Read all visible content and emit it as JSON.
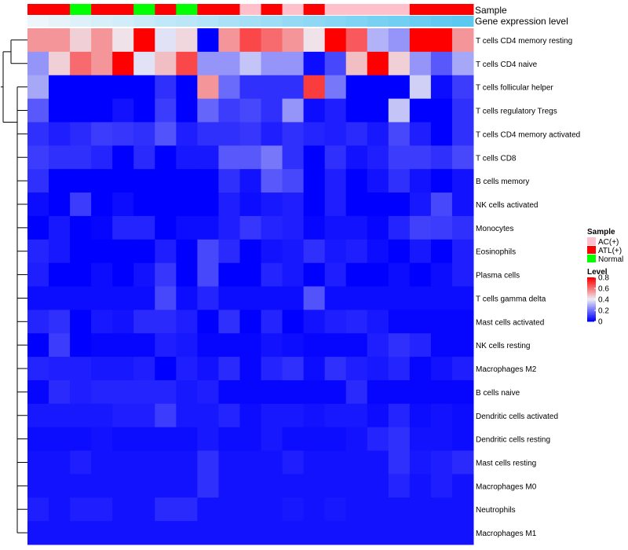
{
  "chart_data": {
    "type": "heatmap",
    "title": "",
    "annotation_titles": [
      "Sample",
      "Gene expression level"
    ],
    "sample_annotation": [
      "ATL(+)",
      "ATL(+)",
      "Normal",
      "ATL(+)",
      "ATL(+)",
      "Normal",
      "ATL(+)",
      "Normal",
      "ATL(+)",
      "ATL(+)",
      "AC(+)",
      "ATL(+)",
      "AC(+)",
      "ATL(+)",
      "AC(+)",
      "AC(+)",
      "AC(+)",
      "AC(+)",
      "ATL(+)",
      "ATL(+)",
      "ATL(+)"
    ],
    "gene_expression_level": [
      0.0,
      0.05,
      0.1,
      0.15,
      0.2,
      0.25,
      0.3,
      0.35,
      0.4,
      0.45,
      0.5,
      0.55,
      0.6,
      0.65,
      0.7,
      0.75,
      0.8,
      0.85,
      0.9,
      0.95,
      1.0
    ],
    "rows": [
      "T cells CD4 memory resting",
      "T cells CD4 naive",
      "T cells follicular helper",
      "T cells regulatory  Tregs",
      "T cells CD4 memory activated",
      "T cells CD8",
      "B cells memory",
      "NK cells activated",
      "Monocytes",
      "Eosinophils",
      "Plasma cells",
      "T cells gamma delta",
      "Mast cells activated",
      "NK cells resting",
      "Macrophages M2",
      "B cells naive",
      "Dendritic cells activated",
      "Dendritic cells resting",
      "Mast cells resting",
      "Macrophages M0",
      "Neutrophils",
      "Macrophages M1"
    ],
    "values": [
      [
        0.55,
        0.55,
        0.45,
        0.55,
        0.42,
        0.8,
        0.38,
        0.44,
        0.0,
        0.55,
        0.68,
        0.62,
        0.55,
        0.42,
        0.8,
        0.65,
        0.3,
        0.25,
        0.8,
        0.8,
        0.55
      ],
      [
        0.25,
        0.45,
        0.62,
        0.55,
        0.8,
        0.38,
        0.48,
        0.68,
        0.25,
        0.25,
        0.33,
        0.25,
        0.25,
        0.02,
        0.12,
        0.48,
        0.8,
        0.45,
        0.25,
        0.15,
        0.28
      ],
      [
        0.28,
        0.0,
        0.0,
        0.0,
        0.0,
        0.0,
        0.08,
        0.0,
        0.55,
        0.18,
        0.08,
        0.08,
        0.08,
        0.7,
        0.2,
        0.0,
        0.0,
        0.0,
        0.35,
        0.02,
        0.1
      ],
      [
        0.15,
        0.0,
        0.0,
        0.0,
        0.03,
        0.0,
        0.1,
        0.0,
        0.17,
        0.1,
        0.12,
        0.08,
        0.25,
        0.02,
        0.05,
        0.0,
        0.0,
        0.33,
        0.0,
        0.0,
        0.08
      ],
      [
        0.08,
        0.05,
        0.07,
        0.1,
        0.09,
        0.08,
        0.14,
        0.05,
        0.08,
        0.08,
        0.09,
        0.05,
        0.08,
        0.06,
        0.05,
        0.07,
        0.04,
        0.12,
        0.05,
        0.0,
        0.08
      ],
      [
        0.1,
        0.08,
        0.08,
        0.06,
        0.0,
        0.07,
        0.0,
        0.04,
        0.04,
        0.15,
        0.15,
        0.2,
        0.08,
        0.0,
        0.08,
        0.03,
        0.05,
        0.1,
        0.1,
        0.08,
        0.12
      ],
      [
        0.08,
        0.0,
        0.0,
        0.0,
        0.0,
        0.0,
        0.0,
        0.0,
        0.0,
        0.08,
        0.03,
        0.15,
        0.12,
        0.0,
        0.05,
        0.0,
        0.03,
        0.08,
        0.03,
        0.0,
        0.03
      ],
      [
        0.02,
        0.0,
        0.1,
        0.0,
        0.02,
        0.0,
        0.0,
        0.0,
        0.0,
        0.05,
        0.02,
        0.04,
        0.05,
        0.0,
        0.05,
        0.0,
        0.0,
        0.0,
        0.04,
        0.12,
        0.03
      ],
      [
        0.0,
        0.04,
        0.0,
        0.01,
        0.06,
        0.06,
        0.0,
        0.02,
        0.02,
        0.05,
        0.09,
        0.06,
        0.05,
        0.01,
        0.03,
        0.03,
        0.01,
        0.06,
        0.11,
        0.1,
        0.08
      ],
      [
        0.06,
        0.04,
        0.0,
        0.0,
        0.0,
        0.0,
        0.05,
        0.0,
        0.12,
        0.07,
        0.0,
        0.03,
        0.04,
        0.08,
        0.04,
        0.05,
        0.02,
        0.0,
        0.04,
        0.0,
        0.05
      ],
      [
        0.05,
        0.0,
        0.0,
        0.02,
        0.0,
        0.03,
        0.09,
        0.0,
        0.12,
        0.0,
        0.0,
        0.06,
        0.04,
        0.0,
        0.05,
        0.0,
        0.0,
        0.02,
        0.0,
        0.02,
        0.05
      ],
      [
        0.02,
        0.02,
        0.02,
        0.02,
        0.02,
        0.02,
        0.12,
        0.02,
        0.06,
        0.02,
        0.02,
        0.02,
        0.02,
        0.14,
        0.02,
        0.02,
        0.02,
        0.02,
        0.02,
        0.02,
        0.02
      ],
      [
        0.06,
        0.08,
        0.0,
        0.04,
        0.03,
        0.07,
        0.07,
        0.05,
        0.0,
        0.08,
        0.0,
        0.06,
        0.0,
        0.03,
        0.05,
        0.06,
        0.04,
        0.01,
        0.01,
        0.01,
        0.01
      ],
      [
        0.0,
        0.1,
        0.0,
        0.01,
        0.01,
        0.01,
        0.05,
        0.04,
        0.01,
        0.01,
        0.01,
        0.03,
        0.02,
        0.01,
        0.01,
        0.01,
        0.05,
        0.08,
        0.06,
        0.01,
        0.01
      ],
      [
        0.06,
        0.05,
        0.05,
        0.04,
        0.04,
        0.05,
        0.0,
        0.05,
        0.03,
        0.07,
        0.01,
        0.06,
        0.08,
        0.02,
        0.08,
        0.05,
        0.04,
        0.06,
        0.01,
        0.03,
        0.05
      ],
      [
        0.01,
        0.07,
        0.05,
        0.06,
        0.06,
        0.06,
        0.06,
        0.04,
        0.05,
        0.01,
        0.01,
        0.01,
        0.01,
        0.01,
        0.01,
        0.07,
        0.01,
        0.01,
        0.01,
        0.01,
        0.01
      ],
      [
        0.04,
        0.04,
        0.04,
        0.04,
        0.05,
        0.05,
        0.1,
        0.04,
        0.04,
        0.06,
        0.02,
        0.04,
        0.04,
        0.03,
        0.04,
        0.04,
        0.02,
        0.06,
        0.02,
        0.03,
        0.02
      ],
      [
        0.02,
        0.02,
        0.02,
        0.03,
        0.02,
        0.02,
        0.02,
        0.02,
        0.04,
        0.02,
        0.02,
        0.04,
        0.02,
        0.02,
        0.02,
        0.03,
        0.06,
        0.08,
        0.03,
        0.03,
        0.02
      ],
      [
        0.03,
        0.03,
        0.05,
        0.03,
        0.03,
        0.03,
        0.03,
        0.03,
        0.08,
        0.03,
        0.03,
        0.03,
        0.05,
        0.03,
        0.03,
        0.03,
        0.03,
        0.08,
        0.04,
        0.05,
        0.07
      ],
      [
        0.03,
        0.03,
        0.03,
        0.03,
        0.03,
        0.03,
        0.03,
        0.03,
        0.08,
        0.03,
        0.03,
        0.03,
        0.03,
        0.03,
        0.03,
        0.03,
        0.03,
        0.06,
        0.03,
        0.05,
        0.03
      ],
      [
        0.05,
        0.03,
        0.05,
        0.05,
        0.03,
        0.03,
        0.07,
        0.07,
        0.03,
        0.03,
        0.03,
        0.03,
        0.04,
        0.03,
        0.04,
        0.03,
        0.03,
        0.03,
        0.03,
        0.03,
        0.03
      ],
      [
        0.03,
        0.03,
        0.03,
        0.03,
        0.03,
        0.03,
        0.03,
        0.03,
        0.03,
        0.03,
        0.03,
        0.03,
        0.03,
        0.03,
        0.03,
        0.03,
        0.03,
        0.03,
        0.03,
        0.03,
        0.03
      ]
    ],
    "legend_sample": {
      "title": "Sample",
      "entries": [
        {
          "label": "AC(+)",
          "color": "#FFC0CB"
        },
        {
          "label": "ATL(+)",
          "color": "#FF0000"
        },
        {
          "label": "Normal",
          "color": "#00FF00"
        }
      ]
    },
    "legend_level": {
      "title": "Level",
      "range": [
        0,
        0.8
      ],
      "ticks": [
        "0.8",
        "0.6",
        "0.4",
        "0.2",
        "0"
      ],
      "tick_values": [
        0.8,
        0.6,
        0.4,
        0.2,
        0
      ],
      "colors": {
        "low": "#0000FF",
        "mid": "#EEEEF5",
        "high": "#FF0000"
      }
    },
    "gene_level_colors": {
      "low": "#EDF6FB",
      "high": "#5BC8F0"
    }
  }
}
